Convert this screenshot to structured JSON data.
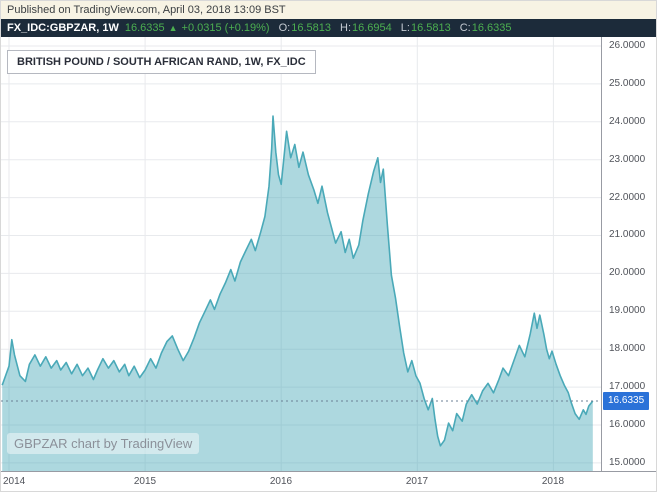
{
  "published_bar": {
    "text": "Published on TradingView.com, April 03, 2018 13:09 BST"
  },
  "symbol_bar": {
    "symbol": "FX_IDC:GBPZAR, 1W",
    "last": "16.6335",
    "arrow": "▲",
    "change": "+0.0315 (+0.19%)",
    "ohlc": [
      {
        "label": "O:",
        "value": "16.5813"
      },
      {
        "label": "H:",
        "value": "16.6954"
      },
      {
        "label": "L:",
        "value": "16.5813"
      },
      {
        "label": "C:",
        "value": "16.6335"
      }
    ]
  },
  "chart": {
    "title": "BRITISH POUND / SOUTH AFRICAN RAND, 1W, FX_IDC",
    "watermark": "GBPZAR chart by TradingView",
    "price_label": "16.6335"
  },
  "colors": {
    "grid": "#e8eaed",
    "area_line": "#4aa9b8",
    "area_fill": "rgba(74,169,184,0.45)",
    "price_line": "#6b7f95",
    "badge_blue": "#2b72d8",
    "up_green": "#4caf50",
    "axis_line": "#989ba3"
  },
  "chart_data": {
    "type": "area",
    "title": "BRITISH POUND / SOUTH AFRICAN RAND, 1W, FX_IDC",
    "symbol": "GBPZAR",
    "interval": "1W",
    "last_price": 16.6335,
    "xlim": [
      2013.941,
      2018.35
    ],
    "ylim": [
      14.786,
      26.237
    ],
    "y_ticks": [
      "26.0000",
      "25.0000",
      "24.0000",
      "23.0000",
      "22.0000",
      "21.0000",
      "20.0000",
      "19.0000",
      "18.0000",
      "17.0000",
      "16.0000",
      "15.0000"
    ],
    "x_ticks": [
      {
        "label": "2014",
        "value": 2014
      },
      {
        "label": "2015",
        "value": 2015
      },
      {
        "label": "2016",
        "value": 2016
      },
      {
        "label": "2017",
        "value": 2017
      },
      {
        "label": "2018",
        "value": 2018
      }
    ],
    "points": [
      [
        2013.95,
        17.05
      ],
      [
        2014.0,
        17.55
      ],
      [
        2014.02,
        18.25
      ],
      [
        2014.04,
        17.85
      ],
      [
        2014.08,
        17.3
      ],
      [
        2014.12,
        17.15
      ],
      [
        2014.15,
        17.6
      ],
      [
        2014.19,
        17.85
      ],
      [
        2014.23,
        17.55
      ],
      [
        2014.27,
        17.8
      ],
      [
        2014.31,
        17.5
      ],
      [
        2014.35,
        17.7
      ],
      [
        2014.38,
        17.45
      ],
      [
        2014.42,
        17.65
      ],
      [
        2014.46,
        17.35
      ],
      [
        2014.5,
        17.6
      ],
      [
        2014.54,
        17.3
      ],
      [
        2014.58,
        17.5
      ],
      [
        2014.62,
        17.2
      ],
      [
        2014.65,
        17.45
      ],
      [
        2014.69,
        17.75
      ],
      [
        2014.73,
        17.5
      ],
      [
        2014.77,
        17.7
      ],
      [
        2014.81,
        17.4
      ],
      [
        2014.85,
        17.6
      ],
      [
        2014.88,
        17.3
      ],
      [
        2014.92,
        17.55
      ],
      [
        2014.96,
        17.25
      ],
      [
        2015.0,
        17.45
      ],
      [
        2015.04,
        17.75
      ],
      [
        2015.08,
        17.5
      ],
      [
        2015.12,
        17.9
      ],
      [
        2015.16,
        18.2
      ],
      [
        2015.2,
        18.35
      ],
      [
        2015.24,
        18.0
      ],
      [
        2015.28,
        17.7
      ],
      [
        2015.32,
        17.95
      ],
      [
        2015.36,
        18.3
      ],
      [
        2015.4,
        18.7
      ],
      [
        2015.44,
        19.0
      ],
      [
        2015.48,
        19.3
      ],
      [
        2015.51,
        19.05
      ],
      [
        2015.55,
        19.45
      ],
      [
        2015.59,
        19.75
      ],
      [
        2015.63,
        20.1
      ],
      [
        2015.66,
        19.8
      ],
      [
        2015.7,
        20.3
      ],
      [
        2015.74,
        20.6
      ],
      [
        2015.78,
        20.9
      ],
      [
        2015.81,
        20.6
      ],
      [
        2015.85,
        21.1
      ],
      [
        2015.88,
        21.5
      ],
      [
        2015.91,
        22.3
      ],
      [
        2015.93,
        23.3
      ],
      [
        2015.94,
        24.15
      ],
      [
        2015.96,
        23.2
      ],
      [
        2015.98,
        22.6
      ],
      [
        2016.0,
        22.35
      ],
      [
        2016.04,
        23.75
      ],
      [
        2016.07,
        23.05
      ],
      [
        2016.1,
        23.4
      ],
      [
        2016.13,
        22.8
      ],
      [
        2016.16,
        23.2
      ],
      [
        2016.2,
        22.6
      ],
      [
        2016.24,
        22.2
      ],
      [
        2016.27,
        21.85
      ],
      [
        2016.3,
        22.3
      ],
      [
        2016.34,
        21.6
      ],
      [
        2016.37,
        21.2
      ],
      [
        2016.4,
        20.8
      ],
      [
        2016.44,
        21.1
      ],
      [
        2016.47,
        20.55
      ],
      [
        2016.5,
        20.9
      ],
      [
        2016.53,
        20.4
      ],
      [
        2016.57,
        20.75
      ],
      [
        2016.6,
        21.4
      ],
      [
        2016.64,
        22.1
      ],
      [
        2016.68,
        22.7
      ],
      [
        2016.71,
        23.05
      ],
      [
        2016.73,
        22.4
      ],
      [
        2016.75,
        22.75
      ],
      [
        2016.78,
        21.3
      ],
      [
        2016.81,
        19.95
      ],
      [
        2016.84,
        19.35
      ],
      [
        2016.87,
        18.6
      ],
      [
        2016.9,
        17.9
      ],
      [
        2016.93,
        17.4
      ],
      [
        2016.96,
        17.7
      ],
      [
        2016.99,
        17.3
      ],
      [
        2017.02,
        17.1
      ],
      [
        2017.05,
        16.7
      ],
      [
        2017.08,
        16.4
      ],
      [
        2017.11,
        16.7
      ],
      [
        2017.13,
        16.15
      ],
      [
        2017.15,
        15.7
      ],
      [
        2017.17,
        15.45
      ],
      [
        2017.2,
        15.6
      ],
      [
        2017.23,
        16.05
      ],
      [
        2017.26,
        15.85
      ],
      [
        2017.29,
        16.3
      ],
      [
        2017.33,
        16.1
      ],
      [
        2017.36,
        16.55
      ],
      [
        2017.4,
        16.8
      ],
      [
        2017.44,
        16.55
      ],
      [
        2017.48,
        16.9
      ],
      [
        2017.52,
        17.1
      ],
      [
        2017.56,
        16.85
      ],
      [
        2017.6,
        17.2
      ],
      [
        2017.63,
        17.5
      ],
      [
        2017.67,
        17.3
      ],
      [
        2017.71,
        17.7
      ],
      [
        2017.75,
        18.1
      ],
      [
        2017.79,
        17.8
      ],
      [
        2017.83,
        18.4
      ],
      [
        2017.86,
        18.95
      ],
      [
        2017.88,
        18.55
      ],
      [
        2017.9,
        18.9
      ],
      [
        2017.93,
        18.4
      ],
      [
        2017.95,
        18.0
      ],
      [
        2017.97,
        17.75
      ],
      [
        2017.99,
        17.95
      ],
      [
        2018.02,
        17.6
      ],
      [
        2018.05,
        17.3
      ],
      [
        2018.08,
        17.05
      ],
      [
        2018.11,
        16.85
      ],
      [
        2018.13,
        16.6
      ],
      [
        2018.16,
        16.3
      ],
      [
        2018.19,
        16.15
      ],
      [
        2018.22,
        16.4
      ],
      [
        2018.24,
        16.28
      ],
      [
        2018.26,
        16.5
      ],
      [
        2018.29,
        16.6335
      ]
    ]
  }
}
